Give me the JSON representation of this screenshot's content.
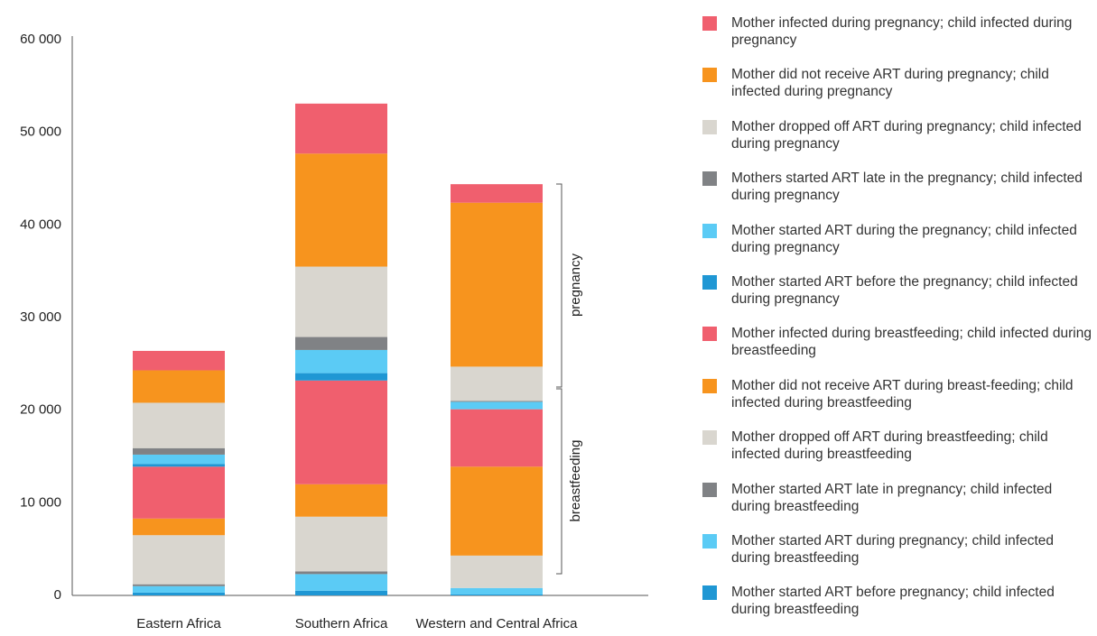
{
  "chart_data": {
    "type": "stacked_bar",
    "categories": [
      "Eastern Africa",
      "Southern Africa",
      "Western and Central Africa"
    ],
    "series": [
      {
        "name": "Mother infected during pregnancy; child infected during pregnancy",
        "color": "#f05f6e",
        "values": [
          2100,
          5400,
          2000
        ]
      },
      {
        "name": "Mother did not receive ART during pregnancy; child infected during pregnancy",
        "color": "#f7941e",
        "values": [
          3500,
          12200,
          17700
        ]
      },
      {
        "name": "Mother dropped off ART during pregnancy; child infected during pregnancy",
        "color": "#d9d6cf",
        "values": [
          4900,
          7600,
          3700
        ]
      },
      {
        "name": "Mothers started ART late in the pregnancy; child infected during pregnancy",
        "color": "#808285",
        "values": [
          700,
          1400,
          100
        ]
      },
      {
        "name": "Mother started ART during the pregnancy; child infected during pregnancy",
        "color": "#5bcbf5",
        "values": [
          1000,
          2500,
          800
        ]
      },
      {
        "name": "Mother started ART before the pregnancy; child infected during pregnancy",
        "color": "#1f97d4",
        "values": [
          300,
          800,
          0
        ]
      },
      {
        "name": "Mother infected during breastfeeding; child infected during breastfeeding",
        "color": "#f05f6e",
        "values": [
          5600,
          11200,
          6200
        ]
      },
      {
        "name": "Mother did not receive ART during breast-feeding; child infected during breastfeeding",
        "color": "#f7941e",
        "values": [
          1800,
          3500,
          9600
        ]
      },
      {
        "name": "Mother dropped off ART during breastfeeding; child infected during breastfeeding",
        "color": "#d9d6cf",
        "values": [
          5300,
          5900,
          3500
        ]
      },
      {
        "name": "Mother started ART late in pregnancy; child infected during breastfeeding",
        "color": "#808285",
        "values": [
          200,
          300,
          0
        ]
      },
      {
        "name": "Mother started ART during pregnancy; child infected during breastfeeding",
        "color": "#5bcbf5",
        "values": [
          700,
          1800,
          700
        ]
      },
      {
        "name": "Mother started ART before pregnancy; child infected during breastfeeding",
        "color": "#1f97d4",
        "values": [
          300,
          500,
          100
        ]
      }
    ],
    "stack_order": "bottom_up_reverse_legend",
    "ylim": [
      0,
      60000
    ],
    "yticks": [
      0,
      {
        "value": 10000,
        "label": "10 000"
      },
      {
        "value": 20000,
        "label": "20 000"
      },
      {
        "value": 30000,
        "label": "30 000"
      },
      {
        "value": 40000,
        "label": "40 000"
      },
      {
        "value": 50000,
        "label": "50 000"
      },
      {
        "value": 60000,
        "label": "60 000"
      }
    ],
    "annotations": [
      "pregnancy",
      "breastfeeding"
    ]
  }
}
